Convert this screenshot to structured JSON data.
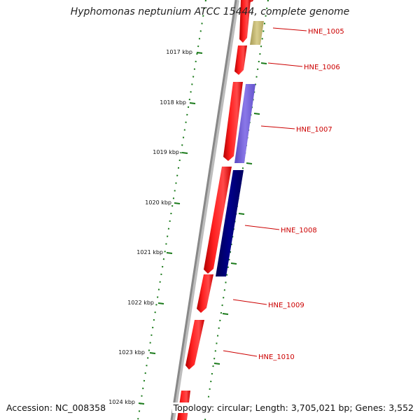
{
  "title": "Hyphomonas neptunium ATCC 15444, complete genome",
  "footer": {
    "accession": "Accession: NC_008358",
    "summary": "Topology: circular; Length: 3,705,021 bp; Genes: 3,552"
  },
  "ruler": {
    "tick_labels": [
      "1017 kbp",
      "1018 kbp",
      "1019 kbp",
      "1020 kbp",
      "1021 kbp",
      "1022 kbp",
      "1023 kbp",
      "1024 kbp"
    ],
    "tick_color": "#1a7a1a"
  },
  "colors": {
    "backbone": "#888888",
    "gene_strand_forward": "#ff0000",
    "label": "#cc0000",
    "hne_1005_feature": "#c8bc78",
    "hne_1007_feature": "#7a68d8",
    "hne_1008_feature": "#00007a"
  },
  "genes": [
    {
      "label": "HNE_1005"
    },
    {
      "label": "HNE_1006"
    },
    {
      "label": "HNE_1007"
    },
    {
      "label": "HNE_1008"
    },
    {
      "label": "HNE_1009"
    },
    {
      "label": "HNE_1010"
    }
  ]
}
